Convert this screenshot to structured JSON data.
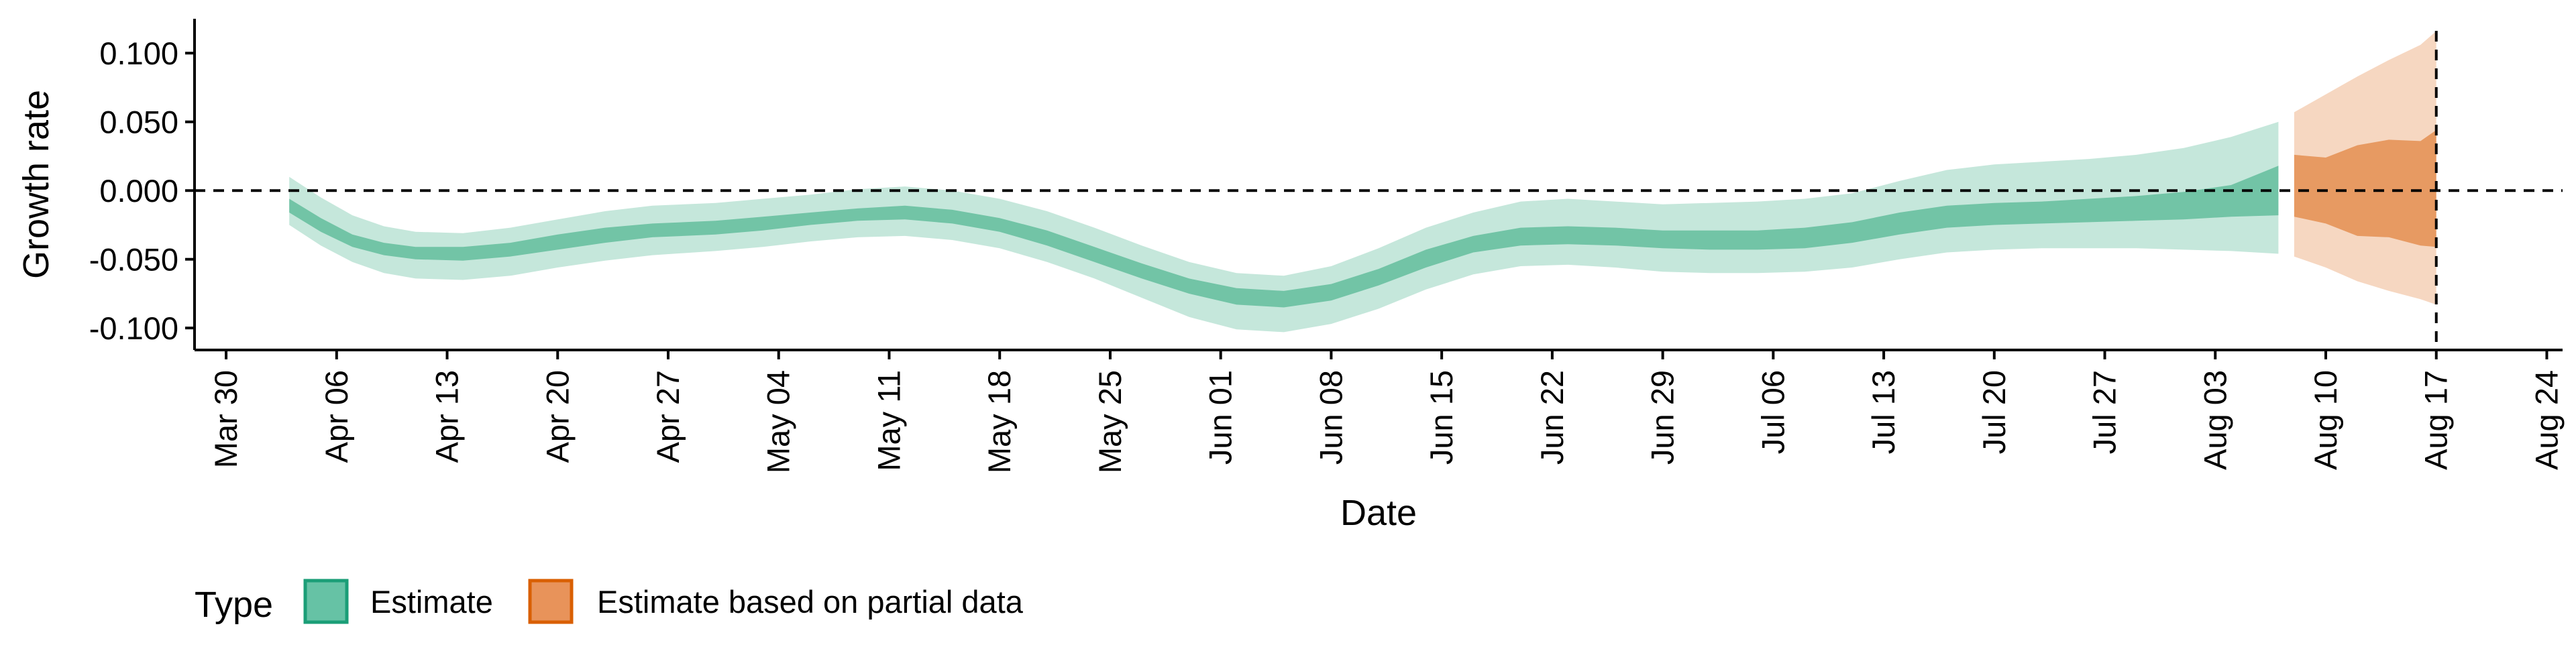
{
  "chart_data": {
    "type": "area",
    "xlabel": "Date",
    "ylabel": "Growth rate",
    "x_axis": {
      "type": "date",
      "range": [
        "2020-03-28",
        "2020-08-25"
      ],
      "ticks": [
        {
          "date": "2020-03-30",
          "label": "Mar 30"
        },
        {
          "date": "2020-04-06",
          "label": "Apr 06"
        },
        {
          "date": "2020-04-13",
          "label": "Apr 13"
        },
        {
          "date": "2020-04-20",
          "label": "Apr 20"
        },
        {
          "date": "2020-04-27",
          "label": "Apr 27"
        },
        {
          "date": "2020-05-04",
          "label": "May 04"
        },
        {
          "date": "2020-05-11",
          "label": "May 11"
        },
        {
          "date": "2020-05-18",
          "label": "May 18"
        },
        {
          "date": "2020-05-25",
          "label": "May 25"
        },
        {
          "date": "2020-06-01",
          "label": "Jun 01"
        },
        {
          "date": "2020-06-08",
          "label": "Jun 08"
        },
        {
          "date": "2020-06-15",
          "label": "Jun 15"
        },
        {
          "date": "2020-06-22",
          "label": "Jun 22"
        },
        {
          "date": "2020-06-29",
          "label": "Jun 29"
        },
        {
          "date": "2020-07-06",
          "label": "Jul 06"
        },
        {
          "date": "2020-07-13",
          "label": "Jul 13"
        },
        {
          "date": "2020-07-20",
          "label": "Jul 20"
        },
        {
          "date": "2020-07-27",
          "label": "Jul 27"
        },
        {
          "date": "2020-08-03",
          "label": "Aug 03"
        },
        {
          "date": "2020-08-10",
          "label": "Aug 10"
        },
        {
          "date": "2020-08-17",
          "label": "Aug 17"
        },
        {
          "date": "2020-08-24",
          "label": "Aug 24"
        }
      ]
    },
    "y_axis": {
      "range": [
        -0.116,
        0.125
      ],
      "ticks": [
        {
          "value": 0.1,
          "label": "0.100"
        },
        {
          "value": 0.05,
          "label": "0.050"
        },
        {
          "value": 0.0,
          "label": "0.000"
        },
        {
          "value": -0.05,
          "label": "-0.050"
        },
        {
          "value": -0.1,
          "label": "-0.100"
        }
      ]
    },
    "grid": false,
    "reference_lines": [
      {
        "axis": "y",
        "value": 0.0,
        "style": "dashed"
      },
      {
        "axis": "x",
        "value": "2020-08-17",
        "style": "dashed"
      }
    ],
    "legend": {
      "position": "bottom-left",
      "title": "Type",
      "entries": [
        {
          "key": "estimate",
          "label": "Estimate",
          "fill": "#66c2a5",
          "border": "#1b9e77"
        },
        {
          "key": "partial",
          "label": "Estimate based on partial data",
          "fill": "#e8935a",
          "border": "#d95f02"
        }
      ]
    },
    "colors": {
      "estimate_inner": "#72c4a6",
      "estimate_outer": "#c5e7db",
      "partial_inner": "#e79a62",
      "partial_outer": "#f6d7c1"
    },
    "series": [
      {
        "type": "Estimate",
        "points": [
          {
            "date": "2020-04-03",
            "lo90": -0.025,
            "lo50": -0.016,
            "hi50": -0.006,
            "hi90": 0.01
          },
          {
            "date": "2020-04-05",
            "lo90": -0.04,
            "lo50": -0.03,
            "hi50": -0.02,
            "hi90": -0.005
          },
          {
            "date": "2020-04-07",
            "lo90": -0.052,
            "lo50": -0.041,
            "hi50": -0.032,
            "hi90": -0.018
          },
          {
            "date": "2020-04-09",
            "lo90": -0.06,
            "lo50": -0.047,
            "hi50": -0.038,
            "hi90": -0.026
          },
          {
            "date": "2020-04-11",
            "lo90": -0.064,
            "lo50": -0.05,
            "hi50": -0.041,
            "hi90": -0.03
          },
          {
            "date": "2020-04-14",
            "lo90": -0.065,
            "lo50": -0.051,
            "hi50": -0.041,
            "hi90": -0.031
          },
          {
            "date": "2020-04-17",
            "lo90": -0.062,
            "lo50": -0.048,
            "hi50": -0.038,
            "hi90": -0.027
          },
          {
            "date": "2020-04-20",
            "lo90": -0.056,
            "lo50": -0.043,
            "hi50": -0.032,
            "hi90": -0.021
          },
          {
            "date": "2020-04-23",
            "lo90": -0.051,
            "lo50": -0.038,
            "hi50": -0.027,
            "hi90": -0.015
          },
          {
            "date": "2020-04-26",
            "lo90": -0.047,
            "lo50": -0.034,
            "hi50": -0.024,
            "hi90": -0.011
          },
          {
            "date": "2020-04-30",
            "lo90": -0.044,
            "lo50": -0.032,
            "hi50": -0.022,
            "hi90": -0.009
          },
          {
            "date": "2020-05-03",
            "lo90": -0.041,
            "lo50": -0.029,
            "hi50": -0.019,
            "hi90": -0.006
          },
          {
            "date": "2020-05-06",
            "lo90": -0.037,
            "lo50": -0.025,
            "hi50": -0.016,
            "hi90": -0.003
          },
          {
            "date": "2020-05-09",
            "lo90": -0.034,
            "lo50": -0.022,
            "hi50": -0.013,
            "hi90": 0.001
          },
          {
            "date": "2020-05-12",
            "lo90": -0.033,
            "lo50": -0.021,
            "hi50": -0.011,
            "hi90": 0.003
          },
          {
            "date": "2020-05-15",
            "lo90": -0.036,
            "lo50": -0.024,
            "hi50": -0.014,
            "hi90": 0.0
          },
          {
            "date": "2020-05-18",
            "lo90": -0.042,
            "lo50": -0.03,
            "hi50": -0.02,
            "hi90": -0.006
          },
          {
            "date": "2020-05-21",
            "lo90": -0.052,
            "lo50": -0.04,
            "hi50": -0.029,
            "hi90": -0.015
          },
          {
            "date": "2020-05-24",
            "lo90": -0.064,
            "lo50": -0.052,
            "hi50": -0.041,
            "hi90": -0.027
          },
          {
            "date": "2020-05-27",
            "lo90": -0.078,
            "lo50": -0.064,
            "hi50": -0.053,
            "hi90": -0.04
          },
          {
            "date": "2020-05-30",
            "lo90": -0.092,
            "lo50": -0.075,
            "hi50": -0.064,
            "hi90": -0.052
          },
          {
            "date": "2020-06-02",
            "lo90": -0.101,
            "lo50": -0.083,
            "hi50": -0.071,
            "hi90": -0.06
          },
          {
            "date": "2020-06-05",
            "lo90": -0.103,
            "lo50": -0.085,
            "hi50": -0.073,
            "hi90": -0.062
          },
          {
            "date": "2020-06-08",
            "lo90": -0.097,
            "lo50": -0.08,
            "hi50": -0.068,
            "hi90": -0.055
          },
          {
            "date": "2020-06-11",
            "lo90": -0.086,
            "lo50": -0.069,
            "hi50": -0.057,
            "hi90": -0.042
          },
          {
            "date": "2020-06-14",
            "lo90": -0.072,
            "lo50": -0.056,
            "hi50": -0.043,
            "hi90": -0.027
          },
          {
            "date": "2020-06-17",
            "lo90": -0.061,
            "lo50": -0.045,
            "hi50": -0.033,
            "hi90": -0.016
          },
          {
            "date": "2020-06-20",
            "lo90": -0.055,
            "lo50": -0.04,
            "hi50": -0.027,
            "hi90": -0.008
          },
          {
            "date": "2020-06-23",
            "lo90": -0.054,
            "lo50": -0.039,
            "hi50": -0.026,
            "hi90": -0.006
          },
          {
            "date": "2020-06-26",
            "lo90": -0.056,
            "lo50": -0.04,
            "hi50": -0.027,
            "hi90": -0.008
          },
          {
            "date": "2020-06-29",
            "lo90": -0.059,
            "lo50": -0.042,
            "hi50": -0.029,
            "hi90": -0.01
          },
          {
            "date": "2020-07-02",
            "lo90": -0.06,
            "lo50": -0.043,
            "hi50": -0.029,
            "hi90": -0.009
          },
          {
            "date": "2020-07-05",
            "lo90": -0.06,
            "lo50": -0.043,
            "hi50": -0.029,
            "hi90": -0.008
          },
          {
            "date": "2020-07-08",
            "lo90": -0.059,
            "lo50": -0.042,
            "hi50": -0.027,
            "hi90": -0.006
          },
          {
            "date": "2020-07-11",
            "lo90": -0.056,
            "lo50": -0.038,
            "hi50": -0.023,
            "hi90": -0.002
          },
          {
            "date": "2020-07-14",
            "lo90": -0.05,
            "lo50": -0.032,
            "hi50": -0.016,
            "hi90": 0.007
          },
          {
            "date": "2020-07-17",
            "lo90": -0.045,
            "lo50": -0.027,
            "hi50": -0.011,
            "hi90": 0.015
          },
          {
            "date": "2020-07-20",
            "lo90": -0.043,
            "lo50": -0.025,
            "hi50": -0.009,
            "hi90": 0.019
          },
          {
            "date": "2020-07-23",
            "lo90": -0.042,
            "lo50": -0.024,
            "hi50": -0.008,
            "hi90": 0.021
          },
          {
            "date": "2020-07-26",
            "lo90": -0.042,
            "lo50": -0.023,
            "hi50": -0.006,
            "hi90": 0.023
          },
          {
            "date": "2020-07-29",
            "lo90": -0.042,
            "lo50": -0.022,
            "hi50": -0.004,
            "hi90": 0.026
          },
          {
            "date": "2020-08-01",
            "lo90": -0.043,
            "lo50": -0.021,
            "hi50": -0.001,
            "hi90": 0.031
          },
          {
            "date": "2020-08-04",
            "lo90": -0.044,
            "lo50": -0.019,
            "hi50": 0.004,
            "hi90": 0.039
          },
          {
            "date": "2020-08-07",
            "lo90": -0.046,
            "lo50": -0.018,
            "hi50": 0.018,
            "hi90": 0.05
          }
        ]
      },
      {
        "type": "Estimate based on partial data",
        "points": [
          {
            "date": "2020-08-08",
            "lo90": -0.048,
            "lo50": -0.019,
            "hi50": 0.026,
            "hi90": 0.057
          },
          {
            "date": "2020-08-10",
            "lo90": -0.056,
            "lo50": -0.024,
            "hi50": 0.024,
            "hi90": 0.07
          },
          {
            "date": "2020-08-12",
            "lo90": -0.066,
            "lo50": -0.033,
            "hi50": 0.033,
            "hi90": 0.083
          },
          {
            "date": "2020-08-14",
            "lo90": -0.073,
            "lo50": -0.034,
            "hi50": 0.037,
            "hi90": 0.095
          },
          {
            "date": "2020-08-16",
            "lo90": -0.079,
            "lo50": -0.04,
            "hi50": 0.036,
            "hi90": 0.106
          },
          {
            "date": "2020-08-17",
            "lo90": -0.083,
            "lo50": -0.041,
            "hi50": 0.044,
            "hi90": 0.116
          }
        ]
      }
    ]
  }
}
